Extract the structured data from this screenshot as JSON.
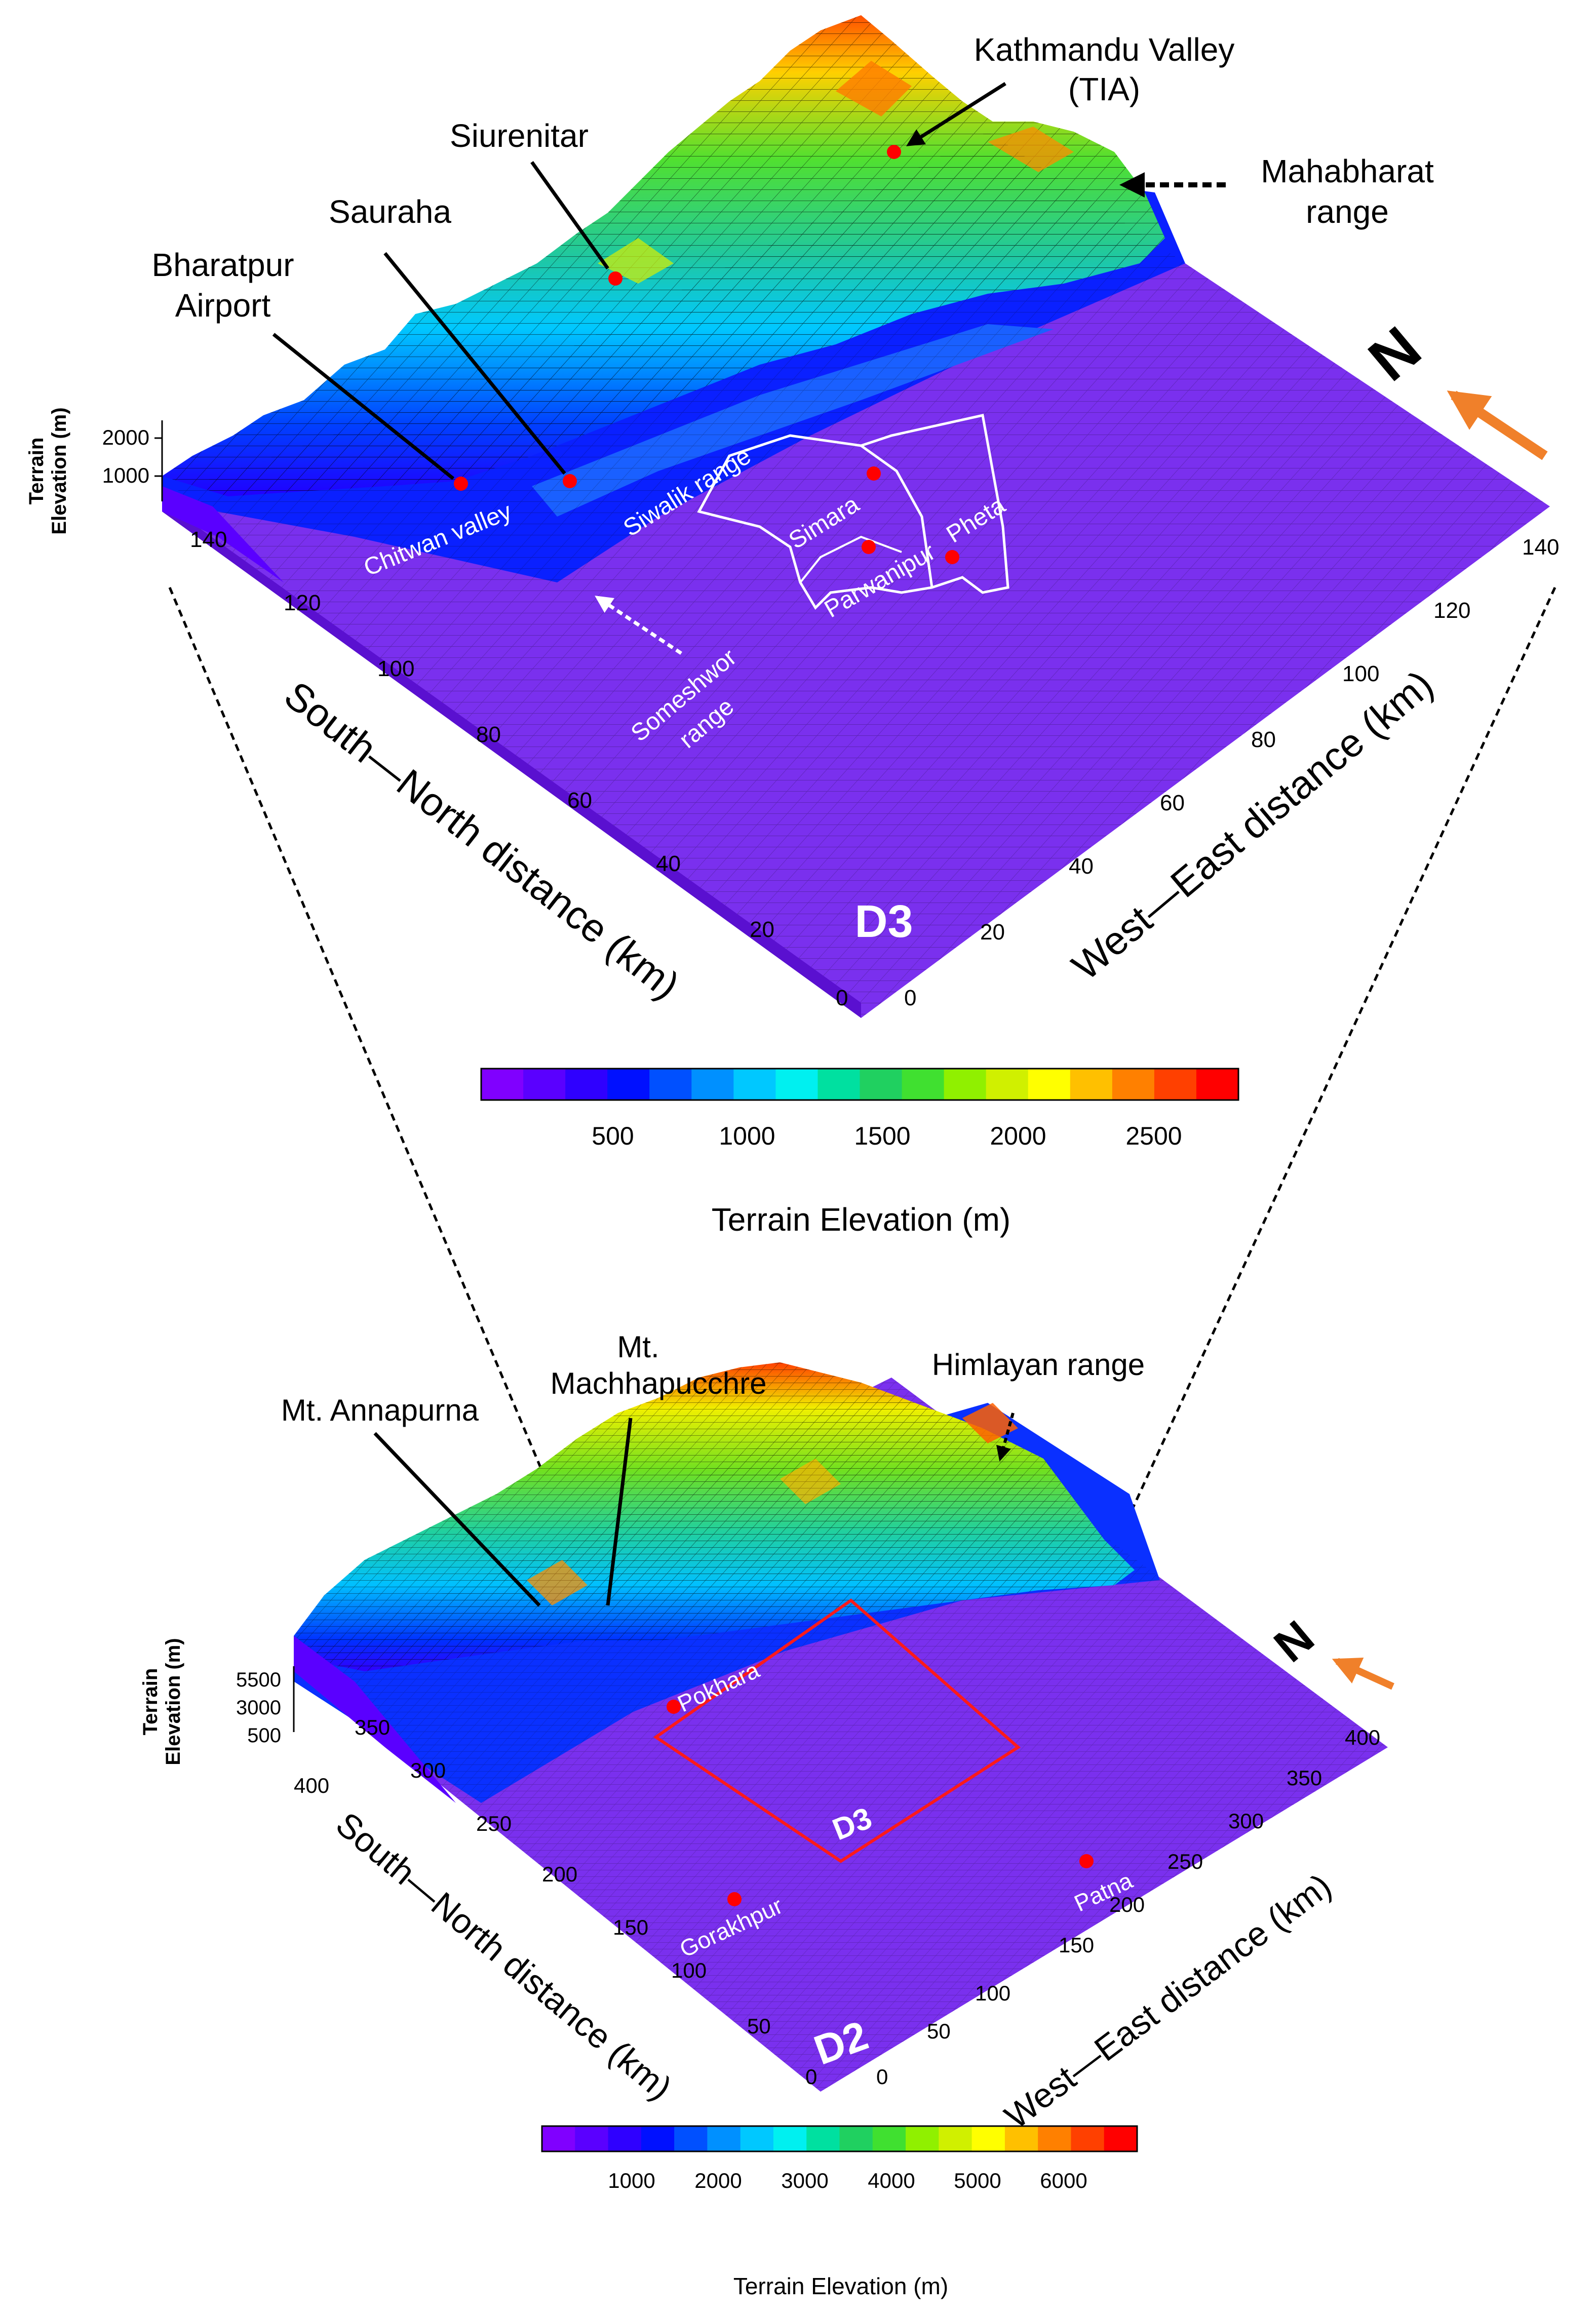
{
  "colors": {
    "ramp": [
      "#8000ff",
      "#5a00ff",
      "#2f00ff",
      "#0010ff",
      "#0050ff",
      "#0090ff",
      "#00c8ff",
      "#00f0f0",
      "#00e0a0",
      "#20d060",
      "#40e030",
      "#90f000",
      "#d0f000",
      "#ffff00",
      "#ffc000",
      "#ff8000",
      "#ff4000",
      "#ff0000"
    ],
    "flat": "#7a30ee",
    "marker": "#ff0000",
    "arrow": "#f0802a"
  },
  "d3": {
    "domain_label": "D3",
    "elev_axis_title_1": "Terrain",
    "elev_axis_title_2": "Elevation (m)",
    "elev_ticks": [
      "2000",
      "1000"
    ],
    "sn_axis_title": "South—North distance (km)",
    "we_axis_title": "West—East distance (km)",
    "sn_ticks": [
      "0",
      "20",
      "40",
      "60",
      "80",
      "100",
      "120",
      "140"
    ],
    "we_ticks": [
      "0",
      "20",
      "40",
      "60",
      "80",
      "100",
      "120",
      "140"
    ],
    "north": "N",
    "places": {
      "kathmandu_1": "Kathmandu Valley",
      "kathmandu_2": "(TIA)",
      "mahabharat_1": "Mahabharat",
      "mahabharat_2": "range",
      "siurenitar": "Siurenitar",
      "sauraha": "Sauraha",
      "bharatpur_1": "Bharatpur",
      "bharatpur_2": "Airport",
      "chitwan": "Chitwan valley",
      "siwalik": "Siwalik range",
      "simara": "Simara",
      "parwanipur": "Parwanipur",
      "pheta": "Pheta",
      "someshwor_1": "Someshwor",
      "someshwor_2": "range"
    },
    "colorbar": {
      "title": "Terrain Elevation (m)",
      "ticks": [
        "500",
        "1000",
        "1500",
        "2000",
        "2500"
      ]
    }
  },
  "d2": {
    "domain_label": "D2",
    "inner_domain_label": "D3",
    "elev_axis_title_1": "Terrain",
    "elev_axis_title_2": "Elevation (m)",
    "elev_ticks": [
      "5500",
      "3000",
      "500"
    ],
    "sn_axis_title": "South—North distance (km)",
    "we_axis_title": "West—East distance (km)",
    "sn_ticks": [
      "0",
      "50",
      "100",
      "150",
      "200",
      "250",
      "300",
      "350",
      "400"
    ],
    "we_ticks": [
      "0",
      "50",
      "100",
      "150",
      "200",
      "250",
      "300",
      "350",
      "400"
    ],
    "north": "N",
    "places": {
      "annapurna": "Mt. Annapurna",
      "machha_1": "Mt.",
      "machha_2": "Machhapucchre",
      "himalayan": "Himlayan range",
      "pokhara": "Pokhara",
      "gorakhpur": "Gorakhpur",
      "patna": "Patna"
    },
    "colorbar": {
      "title": "Terrain Elevation (m)",
      "ticks": [
        "1000",
        "2000",
        "3000",
        "4000",
        "5000",
        "6000"
      ]
    }
  }
}
